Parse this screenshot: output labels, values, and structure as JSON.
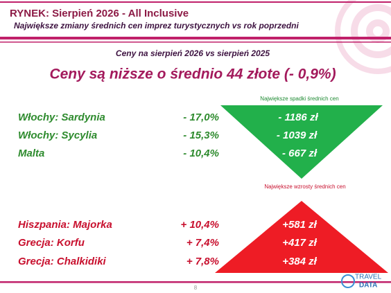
{
  "header": {
    "title": "RYNEK: Sierpień 2026 - All Inclusive",
    "subtitle": "Największe zmiany średnich cen imprez turystycznych vs rok poprzedni"
  },
  "summary": {
    "period": "Ceny na sierpień 2026 vs sierpień 2025",
    "headline": "Ceny są niższe o średnio 44 złote (- 0,9%)"
  },
  "decreases": {
    "label": "Największe spadki średnich cen",
    "rows": [
      [
        "Włochy: Sardynia",
        "- 17,0%",
        "- 1186 zł"
      ],
      [
        "Włochy: Sycylia",
        "- 15,3%",
        "- 1039 zł"
      ],
      [
        "Malta",
        "- 10,4%",
        "- 667 zł"
      ]
    ]
  },
  "increases": {
    "label": "Największe wzrosty średnich cen",
    "rows": [
      [
        "Hiszpania: Majorka",
        "+ 10,4%",
        "+581 zł"
      ],
      [
        "Grecja: Korfu",
        "+ 7,4%",
        "+417 zł"
      ],
      [
        "Grecja: Chalkidiki",
        "+ 7,8%",
        "+384 zł"
      ]
    ]
  },
  "footer": {
    "page": "8",
    "logo_top": "TRAVEL",
    "logo_bottom": "DATA"
  }
}
